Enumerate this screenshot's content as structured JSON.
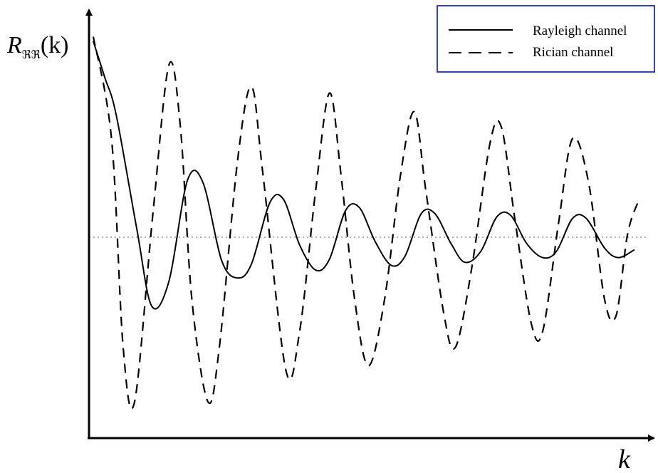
{
  "chart_data": {
    "type": "line",
    "title": "",
    "xlabel": "k",
    "ylabel": {
      "base": "R",
      "subscript": "ℜℜ",
      "suffix": "(k)"
    },
    "ticks": "none",
    "grid": false,
    "reference_line": {
      "style": "dotted",
      "y": 0
    },
    "legend": {
      "position": "top-right"
    },
    "series": [
      {
        "name": "Rayleigh channel",
        "style": "solid",
        "points": [
          [
            0,
            1.25
          ],
          [
            0.5,
            1.02
          ],
          [
            1.0,
            0.78
          ],
          [
            1.9,
            0.05
          ],
          [
            2.55,
            -0.44
          ],
          [
            3.3,
            -0.28
          ],
          [
            4.1,
            0.36
          ],
          [
            4.78,
            0.35
          ],
          [
            5.6,
            -0.15
          ],
          [
            6.3,
            -0.26
          ],
          [
            6.9,
            -0.17
          ],
          [
            7.7,
            0.22
          ],
          [
            8.3,
            0.24
          ],
          [
            9.0,
            -0.05
          ],
          [
            9.7,
            -0.21
          ],
          [
            10.3,
            -0.14
          ],
          [
            11.0,
            0.17
          ],
          [
            11.6,
            0.19
          ],
          [
            12.3,
            -0.03
          ],
          [
            13.0,
            -0.18
          ],
          [
            13.6,
            -0.12
          ],
          [
            14.3,
            0.15
          ],
          [
            14.9,
            0.15
          ],
          [
            15.6,
            -0.04
          ],
          [
            16.2,
            -0.16
          ],
          [
            16.9,
            -0.09
          ],
          [
            17.6,
            0.13
          ],
          [
            18.2,
            0.14
          ],
          [
            18.9,
            -0.04
          ],
          [
            19.6,
            -0.13
          ],
          [
            20.2,
            -0.09
          ],
          [
            20.9,
            0.12
          ],
          [
            21.5,
            0.12
          ],
          [
            22.3,
            -0.07
          ],
          [
            22.9,
            -0.13
          ],
          [
            23.6,
            -0.08
          ]
        ]
      },
      {
        "name": "Rician channel",
        "style": "dashed",
        "points": [
          [
            0,
            1.28
          ],
          [
            0.8,
            0.62
          ],
          [
            1.3,
            -0.7
          ],
          [
            1.8,
            -1.05
          ],
          [
            2.6,
            0.15
          ],
          [
            3.3,
            1.1
          ],
          [
            3.8,
            0.7
          ],
          [
            4.3,
            -0.4
          ],
          [
            5.0,
            -1.05
          ],
          [
            5.5,
            -0.7
          ],
          [
            6.3,
            0.5
          ],
          [
            6.9,
            0.96
          ],
          [
            7.4,
            0.4
          ],
          [
            8.4,
            -0.85
          ],
          [
            9.0,
            -0.6
          ],
          [
            9.7,
            0.3
          ],
          [
            10.3,
            0.92
          ],
          [
            10.8,
            0.4
          ],
          [
            11.4,
            -0.4
          ],
          [
            12.0,
            -0.82
          ],
          [
            12.7,
            -0.4
          ],
          [
            13.4,
            0.4
          ],
          [
            14.0,
            0.8
          ],
          [
            14.5,
            0.3
          ],
          [
            15.3,
            -0.5
          ],
          [
            15.8,
            -0.7
          ],
          [
            16.5,
            -0.2
          ],
          [
            17.3,
            0.6
          ],
          [
            17.8,
            0.7
          ],
          [
            18.4,
            0.1
          ],
          [
            19.1,
            -0.55
          ],
          [
            19.6,
            -0.6
          ],
          [
            20.3,
            0.1
          ],
          [
            20.9,
            0.63
          ],
          [
            21.6,
            0.35
          ],
          [
            22.3,
            -0.4
          ],
          [
            22.8,
            -0.5
          ],
          [
            23.3,
            0.02
          ],
          [
            23.8,
            0.24
          ]
        ]
      }
    ]
  }
}
